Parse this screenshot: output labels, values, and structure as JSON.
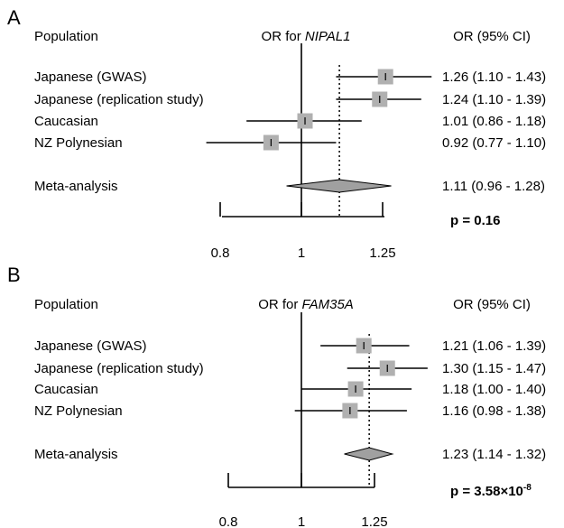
{
  "chart_data": [
    {
      "type": "forest",
      "panel": "A",
      "header": {
        "population": "Population",
        "or_prefix": "OR for ",
        "gene": "NIPAL1",
        "ci": "OR (95% CI)"
      },
      "rows": [
        {
          "label": "Japanese (GWAS)",
          "or": 1.26,
          "lo": 1.1,
          "hi": 1.43,
          "text": "1.26 (1.10 - 1.43)"
        },
        {
          "label": "Japanese (replication study)",
          "or": 1.24,
          "lo": 1.1,
          "hi": 1.39,
          "text": "1.24 (1.10 - 1.39)"
        },
        {
          "label": "Caucasian",
          "or": 1.01,
          "lo": 0.86,
          "hi": 1.18,
          "text": "1.01 (0.86 - 1.18)"
        },
        {
          "label": "NZ Polynesian",
          "or": 0.92,
          "lo": 0.77,
          "hi": 1.1,
          "text": "0.92 (0.77 - 1.10)"
        }
      ],
      "meta": {
        "label": "Meta-analysis",
        "or": 1.11,
        "lo": 0.96,
        "hi": 1.28,
        "text": "1.11 (0.96 - 1.28)"
      },
      "p_text": "p = 0.16",
      "ticks": [
        0.8,
        1,
        1.25
      ],
      "tick_labels": [
        "0.8",
        "1",
        "1.25"
      ],
      "xlim": [
        0.75,
        1.3
      ],
      "xscale": "log",
      "reference_line": 1,
      "pooled_line": "dotted"
    },
    {
      "type": "forest",
      "panel": "B",
      "header": {
        "population": "Population",
        "or_prefix": "OR for ",
        "gene": "FAM35A",
        "ci": "OR (95% CI)"
      },
      "rows": [
        {
          "label": "Japanese (GWAS)",
          "or": 1.21,
          "lo": 1.06,
          "hi": 1.39,
          "text": "1.21 (1.06 - 1.39)"
        },
        {
          "label": "Japanese (replication study)",
          "or": 1.3,
          "lo": 1.15,
          "hi": 1.47,
          "text": "1.30 (1.15 - 1.47)"
        },
        {
          "label": "Caucasian",
          "or": 1.18,
          "lo": 1.0,
          "hi": 1.4,
          "text": "1.18 (1.00 - 1.40)"
        },
        {
          "label": "NZ Polynesian",
          "or": 1.16,
          "lo": 0.98,
          "hi": 1.38,
          "text": "1.16 (0.98 - 1.38)"
        }
      ],
      "meta": {
        "label": "Meta-analysis",
        "or": 1.23,
        "lo": 1.14,
        "hi": 1.32,
        "text": "1.23 (1.14 - 1.32)"
      },
      "p_text": "p = 3.58×10",
      "p_exp": "-8",
      "ticks": [
        0.8,
        1,
        1.25
      ],
      "tick_labels": [
        "0.8",
        "1",
        "1.25"
      ],
      "xlim": [
        0.8,
        1.3
      ],
      "xscale": "log",
      "reference_line": 1,
      "pooled_line": "dotted"
    }
  ]
}
